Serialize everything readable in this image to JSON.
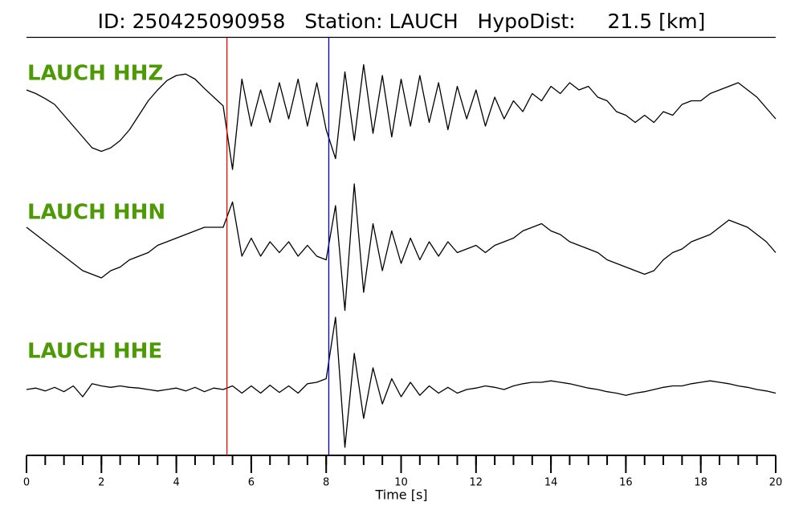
{
  "chart_data": {
    "type": "line",
    "title": "ID: 250425090958   Station: LAUCH   HypoDist:     21.5 [km]",
    "xlabel": "Time [s]",
    "xlim": [
      0,
      20
    ],
    "xticks": [
      0,
      2,
      4,
      6,
      8,
      10,
      12,
      14,
      16,
      18,
      20
    ],
    "xminorticks": [
      0,
      0.5,
      1,
      1.5,
      2,
      2.5,
      3,
      3.5,
      4,
      4.5,
      5,
      5.5,
      6,
      6.5,
      7,
      7.5,
      8,
      8.5,
      9,
      9.5,
      10,
      10.5,
      11,
      11.5,
      12,
      12.5,
      13,
      13.5,
      14,
      14.5,
      15,
      15.5,
      16,
      16.5,
      17,
      17.5,
      18,
      18.5,
      19,
      19.5,
      20
    ],
    "label_color": "#4e9a06",
    "picks": [
      {
        "x": 5.35,
        "color": "#ff0000"
      },
      {
        "x": 8.07,
        "color": "#0000cc"
      }
    ],
    "x": [
      0,
      0.25,
      0.5,
      0.75,
      1,
      1.25,
      1.5,
      1.75,
      2,
      2.25,
      2.5,
      2.75,
      3,
      3.25,
      3.5,
      3.75,
      4,
      4.25,
      4.5,
      4.75,
      5,
      5.25,
      5.5,
      5.75,
      6,
      6.25,
      6.5,
      6.75,
      7,
      7.25,
      7.5,
      7.75,
      8,
      8.25,
      8.5,
      8.75,
      9,
      9.25,
      9.5,
      9.75,
      10,
      10.25,
      10.5,
      10.75,
      11,
      11.25,
      11.5,
      11.75,
      12,
      12.25,
      12.5,
      12.75,
      13,
      13.25,
      13.5,
      13.75,
      14,
      14.25,
      14.5,
      14.75,
      15,
      15.25,
      15.5,
      15.75,
      16,
      16.25,
      16.5,
      16.75,
      17,
      17.25,
      17.5,
      17.75,
      18,
      18.25,
      18.5,
      18.75,
      19,
      19.25,
      19.5,
      19.75,
      20
    ],
    "series": [
      {
        "name": "LAUCH HHZ",
        "color": "#000000",
        "values": [
          0.2,
          0.15,
          0.08,
          0.0,
          -0.15,
          -0.3,
          -0.45,
          -0.6,
          -0.65,
          -0.6,
          -0.5,
          -0.35,
          -0.15,
          0.05,
          0.2,
          0.33,
          0.4,
          0.42,
          0.35,
          0.22,
          0.1,
          -0.02,
          -0.9,
          0.35,
          -0.3,
          0.2,
          -0.25,
          0.3,
          -0.2,
          0.35,
          -0.3,
          0.3,
          -0.35,
          -0.75,
          0.45,
          -0.5,
          0.55,
          -0.4,
          0.4,
          -0.45,
          0.35,
          -0.3,
          0.4,
          -0.25,
          0.3,
          -0.35,
          0.25,
          -0.2,
          0.2,
          -0.3,
          0.1,
          -0.2,
          0.05,
          -0.1,
          0.15,
          0.05,
          0.25,
          0.15,
          0.3,
          0.2,
          0.25,
          0.1,
          0.05,
          -0.1,
          -0.15,
          -0.25,
          -0.15,
          -0.25,
          -0.1,
          -0.15,
          0.0,
          0.05,
          0.05,
          0.15,
          0.2,
          0.25,
          0.3,
          0.2,
          0.1,
          -0.05,
          -0.2
        ]
      },
      {
        "name": "LAUCH HHN",
        "color": "#000000",
        "values": [
          0.3,
          0.2,
          0.1,
          0.0,
          -0.1,
          -0.2,
          -0.3,
          -0.35,
          -0.4,
          -0.3,
          -0.25,
          -0.15,
          -0.1,
          -0.05,
          0.05,
          0.1,
          0.15,
          0.2,
          0.25,
          0.3,
          0.3,
          0.3,
          0.65,
          -0.1,
          0.15,
          -0.1,
          0.1,
          -0.05,
          0.1,
          -0.1,
          0.05,
          -0.1,
          -0.15,
          0.6,
          -0.85,
          0.9,
          -0.6,
          0.35,
          -0.3,
          0.25,
          -0.2,
          0.15,
          -0.15,
          0.1,
          -0.1,
          0.1,
          -0.05,
          0.0,
          0.05,
          -0.05,
          0.05,
          0.1,
          0.15,
          0.25,
          0.3,
          0.35,
          0.25,
          0.2,
          0.1,
          0.05,
          0.0,
          -0.05,
          -0.15,
          -0.2,
          -0.25,
          -0.3,
          -0.35,
          -0.3,
          -0.15,
          -0.05,
          0.0,
          0.1,
          0.15,
          0.2,
          0.3,
          0.4,
          0.35,
          0.3,
          0.2,
          0.1,
          -0.05
        ]
      },
      {
        "name": "LAUCH HHE",
        "color": "#000000",
        "values": [
          0.0,
          0.02,
          -0.02,
          0.03,
          -0.03,
          0.05,
          -0.1,
          0.08,
          0.05,
          0.03,
          0.05,
          0.03,
          0.02,
          0.0,
          -0.02,
          0.0,
          0.02,
          -0.02,
          0.03,
          -0.03,
          0.02,
          0.0,
          0.05,
          -0.05,
          0.05,
          -0.05,
          0.06,
          -0.04,
          0.05,
          -0.05,
          0.08,
          0.1,
          0.15,
          1.0,
          -0.8,
          0.5,
          -0.4,
          0.3,
          -0.2,
          0.15,
          -0.1,
          0.1,
          -0.08,
          0.05,
          -0.05,
          0.03,
          -0.05,
          0.0,
          0.02,
          0.05,
          0.03,
          0.0,
          0.05,
          0.08,
          0.1,
          0.1,
          0.12,
          0.1,
          0.08,
          0.05,
          0.02,
          0.0,
          -0.03,
          -0.05,
          -0.08,
          -0.05,
          -0.03,
          0.0,
          0.03,
          0.05,
          0.05,
          0.08,
          0.1,
          0.12,
          0.1,
          0.08,
          0.05,
          0.03,
          0.0,
          -0.02,
          -0.05
        ]
      }
    ]
  }
}
